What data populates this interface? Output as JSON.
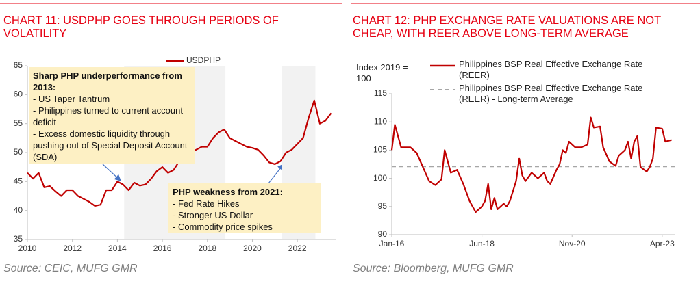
{
  "chart_data": [
    {
      "type": "line",
      "title": "CHART 11: USDPHP GOES THROUGH PERIODS OF VOLATILITY",
      "source": "Source: CEIC, MUFG GMR",
      "x": [
        2010,
        2010.25,
        2010.5,
        2010.75,
        2011,
        2011.25,
        2011.5,
        2011.75,
        2012,
        2012.25,
        2012.5,
        2012.75,
        2013,
        2013.25,
        2013.5,
        2013.75,
        2014,
        2014.25,
        2014.5,
        2014.75,
        2015,
        2015.25,
        2015.5,
        2015.75,
        2016,
        2016.25,
        2016.5,
        2016.75,
        2017,
        2017.25,
        2017.5,
        2017.75,
        2018,
        2018.25,
        2018.5,
        2018.75,
        2019,
        2019.25,
        2019.5,
        2019.75,
        2020,
        2020.25,
        2020.5,
        2020.75,
        2021,
        2021.25,
        2021.5,
        2021.75,
        2022,
        2022.25,
        2022.5,
        2022.75,
        2023,
        2023.25,
        2023.5
      ],
      "series": [
        {
          "name": "USDPHP",
          "color": "#c00000",
          "values": [
            46.5,
            45.5,
            46.5,
            44,
            44.2,
            43.3,
            42.5,
            43.5,
            43.5,
            42.5,
            42,
            41.5,
            40.8,
            41,
            43.5,
            43.5,
            45,
            44.5,
            43.5,
            44.8,
            44.3,
            44.5,
            45.5,
            46.8,
            47.5,
            46.5,
            47,
            48.5,
            50,
            50,
            50.5,
            51,
            51,
            52.5,
            53.5,
            54,
            52.5,
            52,
            51.5,
            51,
            50.8,
            50.5,
            49.5,
            48.3,
            48,
            48.5,
            50,
            50.5,
            51.5,
            52.5,
            56,
            59,
            55,
            55.5,
            56.8
          ]
        }
      ],
      "xlim": [
        2010,
        2023.7
      ],
      "xticks": [
        2010,
        2012,
        2014,
        2016,
        2018,
        2020,
        2022
      ],
      "ylim": [
        35,
        65
      ],
      "yticks": [
        35,
        40,
        45,
        50,
        55,
        60,
        65
      ],
      "shaded_periods": [
        [
          2014.3,
          2018.8
        ],
        [
          2021.3,
          2022.8
        ]
      ],
      "annotations": [
        {
          "heading": "Sharp PHP underperformance from 2013:",
          "items": [
            "- US Taper Tantrum",
            "- Philippines turned to current account deficit",
            "- Excess domestic liquidity through pushing out of Special Deposit Account (SDA)"
          ]
        },
        {
          "heading": "PHP weakness from 2021:",
          "items": [
            "- Fed Rate Hikes",
            "- Stronger US Dollar",
            "- Commodity price spikes"
          ]
        }
      ]
    },
    {
      "type": "line",
      "title": "CHART 12: PHP EXCHANGE RATE VALUATIONS ARE NOT CHEAP, WITH REER ABOVE LONG-TERM AVERAGE",
      "source": "Source: Bloomberg, MUFG GMR",
      "y_label": "Index 2019 = 100",
      "x": [
        0,
        1,
        3,
        6,
        8,
        10,
        12,
        14,
        16,
        17,
        19,
        21,
        23,
        25,
        27,
        29,
        30,
        31,
        32,
        33,
        34,
        36,
        37,
        38,
        40,
        41,
        42,
        43,
        45,
        47,
        49,
        50,
        51,
        53,
        54,
        55,
        56,
        57,
        59,
        61,
        63,
        64,
        65,
        67,
        68,
        70,
        72,
        73,
        75,
        76,
        77,
        78,
        79,
        80,
        82,
        83,
        84,
        85,
        87,
        88,
        90
      ],
      "series": [
        {
          "name": "Philippines BSP Real Effective Exchange Rate (REER)",
          "color": "#c00000",
          "values": [
            105,
            109.5,
            105.5,
            105.5,
            104.5,
            102,
            99.5,
            98.8,
            99.8,
            105,
            101,
            101.5,
            99,
            96,
            94,
            95,
            96,
            99,
            94.5,
            96.5,
            94.5,
            95.5,
            95,
            96,
            99.5,
            103.5,
            100.5,
            99.5,
            101,
            100,
            101,
            99.5,
            99,
            101.5,
            102.5,
            105,
            104.5,
            106.5,
            105.5,
            105.5,
            106,
            110.8,
            109,
            109.2,
            105.5,
            103,
            102.2,
            104,
            105,
            106.5,
            103.5,
            106.5,
            107.5,
            102,
            101.2,
            102,
            103.5,
            109,
            108.8,
            106.5,
            106.8
          ]
        }
      ],
      "reference_line": {
        "name": "Philippines BSP Real Effective Exchange Rate (REER) - Long-term Average",
        "value": 102.1,
        "color": "#a6a6a6"
      },
      "xlim": [
        0,
        91
      ],
      "xticks": [
        {
          "value": 0,
          "label": "Jan-16"
        },
        {
          "value": 29,
          "label": "Jun-18"
        },
        {
          "value": 58,
          "label": "Nov-20"
        },
        {
          "value": 87,
          "label": "Apr-23"
        }
      ],
      "ylim": [
        90,
        115
      ],
      "yticks": [
        90,
        95,
        100,
        105,
        110,
        115
      ]
    }
  ]
}
